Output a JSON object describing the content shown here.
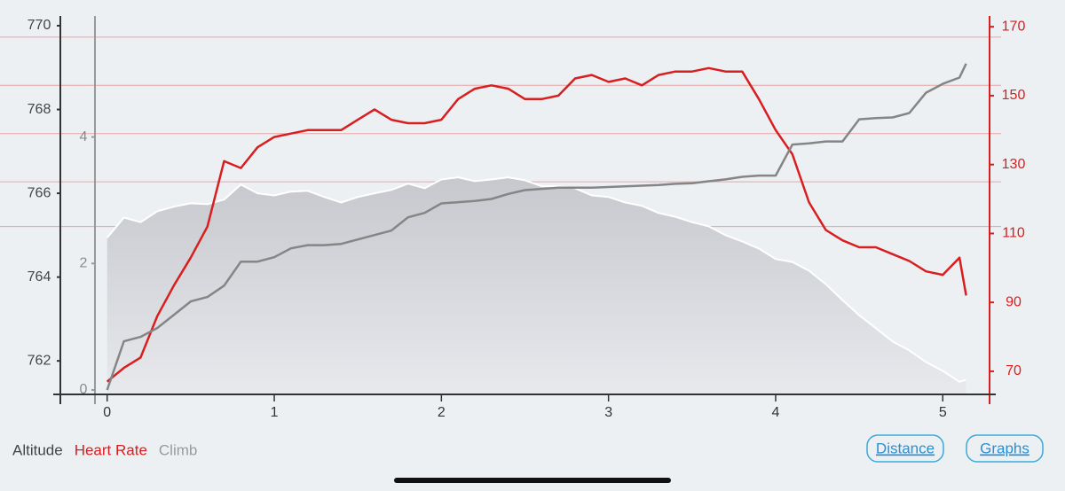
{
  "chart_data": {
    "type": "line",
    "x": [
      0,
      0.1,
      0.2,
      0.3,
      0.4,
      0.5,
      0.6,
      0.7,
      0.8,
      0.9,
      1,
      1.1,
      1.2,
      1.3,
      1.4,
      1.5,
      1.6,
      1.7,
      1.8,
      1.9,
      2,
      2.1,
      2.2,
      2.3,
      2.4,
      2.5,
      2.6,
      2.7,
      2.8,
      2.9,
      3,
      3.1,
      3.2,
      3.3,
      3.4,
      3.5,
      3.6,
      3.7,
      3.8,
      3.9,
      4,
      4.1,
      4.2,
      4.3,
      4.4,
      4.5,
      4.6,
      4.7,
      4.8,
      4.9,
      5,
      5.1,
      5.14
    ],
    "xlim": [
      -0.28,
      5.28
    ],
    "xticks": [
      0,
      1,
      2,
      3,
      4,
      5
    ],
    "ylim": [
      761.2,
      770
    ],
    "yticks": [
      762,
      764,
      766,
      768,
      770
    ],
    "y2lim": [
      63.3,
      170.3
    ],
    "y2ticks": [
      70,
      90,
      110,
      130,
      150,
      170
    ],
    "y3lim": [
      -0.07,
      5.76
    ],
    "y3ticks": [
      0,
      2,
      4
    ],
    "hr_zones": [
      167,
      153,
      139,
      125,
      112
    ],
    "series": [
      {
        "name": "Altitude",
        "color": "#ffffff",
        "fill": "#c9cacf",
        "legend_color": "#444444",
        "axis": "y",
        "values": [
          764.94,
          765.42,
          765.31,
          765.57,
          765.68,
          765.76,
          765.74,
          765.85,
          766.21,
          766.0,
          765.95,
          766.04,
          766.06,
          765.91,
          765.78,
          765.91,
          766.0,
          766.08,
          766.23,
          766.12,
          766.33,
          766.38,
          766.29,
          766.33,
          766.38,
          766.31,
          766.17,
          766.17,
          766.12,
          765.95,
          765.91,
          765.78,
          765.7,
          765.53,
          765.44,
          765.31,
          765.21,
          765.0,
          764.85,
          764.68,
          764.43,
          764.36,
          764.15,
          763.83,
          763.45,
          763.09,
          762.78,
          762.46,
          762.25,
          761.97,
          761.76,
          761.5,
          761.55
        ]
      },
      {
        "name": "Heart Rate",
        "color": "#d81e1e",
        "legend_color": "#d81e1e",
        "axis": "y2",
        "values": [
          67,
          71,
          74,
          86,
          95,
          103,
          112,
          131,
          129,
          135,
          138,
          139,
          140,
          140,
          140,
          143,
          146,
          143,
          142,
          142,
          143,
          149,
          152,
          153,
          152,
          149,
          149,
          150,
          155,
          156,
          154,
          155,
          153,
          156,
          157,
          157,
          158,
          157,
          157,
          149,
          140,
          133,
          119,
          111,
          108,
          106,
          106,
          104,
          102,
          99,
          98,
          103,
          92
        ]
      },
      {
        "name": "Climb",
        "color": "#858585",
        "legend_color": "#9a9a9a",
        "axis": "y3",
        "values": [
          0,
          0.77,
          0.84,
          0.98,
          1.19,
          1.4,
          1.47,
          1.65,
          2.03,
          2.03,
          2.1,
          2.24,
          2.29,
          2.29,
          2.31,
          2.38,
          2.45,
          2.52,
          2.73,
          2.8,
          2.95,
          2.97,
          2.99,
          3.02,
          3.1,
          3.16,
          3.18,
          3.2,
          3.2,
          3.2,
          3.21,
          3.22,
          3.23,
          3.24,
          3.26,
          3.27,
          3.3,
          3.33,
          3.37,
          3.39,
          3.39,
          3.88,
          3.9,
          3.93,
          3.93,
          4.28,
          4.3,
          4.31,
          4.38,
          4.7,
          4.84,
          4.94,
          5.16
        ]
      }
    ],
    "buttons": [
      "Distance",
      "Graphs"
    ]
  }
}
